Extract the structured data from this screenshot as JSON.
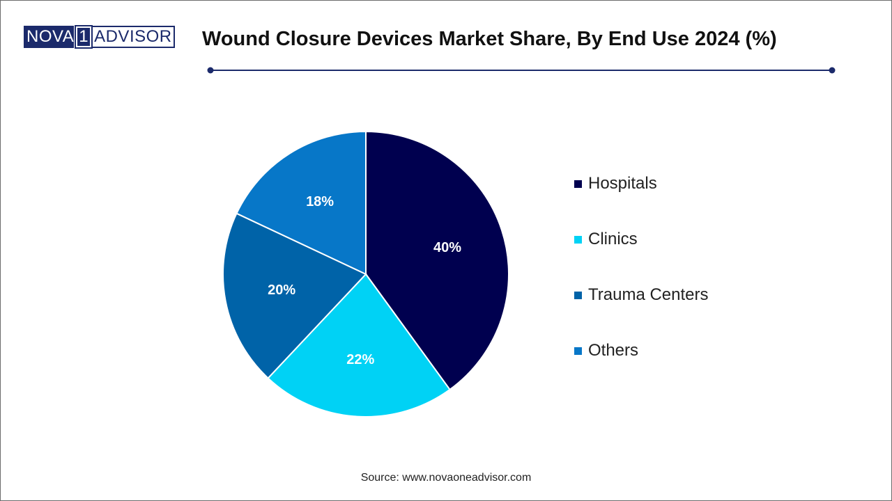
{
  "logo": {
    "part1": "NOVA",
    "part2": "1",
    "part3": "ADVISOR"
  },
  "header": {
    "title": "Wound Closure Devices Market Share, By End Use 2024 (%)"
  },
  "colors": {
    "hospitals": "#00004f",
    "clinics": "#00d2f5",
    "trauma_centers": "#0063a8",
    "others": "#0777c8",
    "accent": "#1b2a6b"
  },
  "chart_data": {
    "type": "pie",
    "title": "Wound Closure Devices Market Share, By End Use 2024 (%)",
    "categories": [
      "Hospitals",
      "Clinics",
      "Trauma Centers",
      "Others"
    ],
    "values": [
      40,
      22,
      20,
      18
    ],
    "labels": [
      "40%",
      "22%",
      "20%",
      "18%"
    ],
    "legend_position": "right"
  },
  "legend": {
    "items": [
      {
        "label": "Hospitals"
      },
      {
        "label": "Clinics"
      },
      {
        "label": "Trauma Centers"
      },
      {
        "label": "Others"
      }
    ]
  },
  "footer": {
    "source": "Source: www.novaoneadvisor.com"
  }
}
